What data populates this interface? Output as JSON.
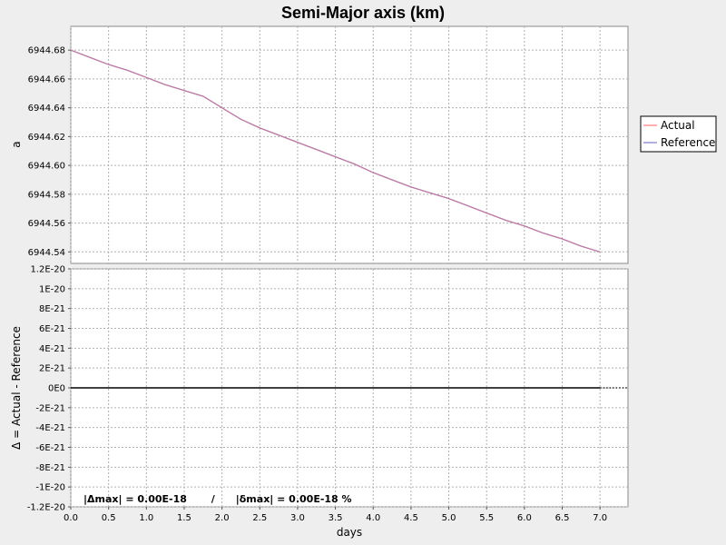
{
  "chart_data": {
    "type": "line",
    "title": "Semi-Major axis (km)",
    "xlabel": "days",
    "xlim": [
      0,
      7.37
    ],
    "xticks": [
      0.0,
      0.5,
      1.0,
      1.5,
      2.0,
      2.5,
      3.0,
      3.5,
      4.0,
      4.5,
      5.0,
      5.5,
      6.0,
      6.5,
      7.0
    ],
    "xtick_labels": [
      "0.0",
      "0.5",
      "1.0",
      "1.5",
      "2.0",
      "2.5",
      "3.0",
      "3.5",
      "4.0",
      "4.5",
      "5.0",
      "5.5",
      "6.0",
      "6.5",
      "7.0"
    ],
    "grid": true,
    "legend_placement": "right",
    "top_panel": {
      "ylabel": "a",
      "ylim": [
        6944.532,
        6944.6965
      ],
      "yticks": [
        6944.54,
        6944.56,
        6944.58,
        6944.6,
        6944.62,
        6944.64,
        6944.66,
        6944.68
      ],
      "ytick_labels": [
        "6944.54",
        "6944.56",
        "6944.58",
        "6944.60",
        "6944.62",
        "6944.64",
        "6944.66",
        "6944.68"
      ],
      "series": [
        {
          "name": "Actual",
          "color": "#ff7b7b",
          "x": [
            0.0,
            0.25,
            0.5,
            0.75,
            1.0,
            1.25,
            1.5,
            1.75,
            2.0,
            2.25,
            2.5,
            2.75,
            3.0,
            3.25,
            3.5,
            3.75,
            4.0,
            4.25,
            4.5,
            4.75,
            5.0,
            5.25,
            5.5,
            5.75,
            6.0,
            6.25,
            6.5,
            6.75,
            7.0
          ],
          "y": [
            6944.68,
            6944.675,
            6944.67,
            6944.666,
            6944.661,
            6944.656,
            6944.652,
            6944.648,
            6944.64,
            6944.632,
            6944.626,
            6944.621,
            6944.616,
            6944.611,
            6944.606,
            6944.601,
            6944.595,
            6944.59,
            6944.585,
            6944.581,
            6944.577,
            6944.572,
            6944.567,
            6944.562,
            6944.558,
            6944.553,
            6944.549,
            6944.544,
            6944.54
          ]
        },
        {
          "name": "Reference",
          "color": "#7b7bcc",
          "x": [
            0.0,
            0.25,
            0.5,
            0.75,
            1.0,
            1.25,
            1.5,
            1.75,
            2.0,
            2.25,
            2.5,
            2.75,
            3.0,
            3.25,
            3.5,
            3.75,
            4.0,
            4.25,
            4.5,
            4.75,
            5.0,
            5.25,
            5.5,
            5.75,
            6.0,
            6.25,
            6.5,
            6.75,
            7.0
          ],
          "y": [
            6944.68,
            6944.675,
            6944.67,
            6944.666,
            6944.661,
            6944.656,
            6944.652,
            6944.648,
            6944.64,
            6944.632,
            6944.626,
            6944.621,
            6944.616,
            6944.611,
            6944.606,
            6944.601,
            6944.595,
            6944.59,
            6944.585,
            6944.581,
            6944.577,
            6944.572,
            6944.567,
            6944.562,
            6944.558,
            6944.553,
            6944.549,
            6944.544,
            6944.54
          ]
        }
      ]
    },
    "bottom_panel": {
      "ylabel": "Δ = Actual - Reference",
      "ylim": [
        -1.2e-20,
        1.2e-20
      ],
      "yticks": [
        1.2e-20,
        1e-20,
        8e-21,
        6e-21,
        4e-21,
        2e-21,
        0,
        -2e-21,
        -4e-21,
        -6e-21,
        -8e-21,
        -1e-20,
        -1.2e-20
      ],
      "ytick_labels": [
        "1.2E-20",
        "1E-20",
        "8E-21",
        "6E-21",
        "4E-21",
        "2E-21",
        "0E0",
        "-2E-21",
        "-4E-21",
        "-6E-21",
        "-8E-21",
        "-1E-20",
        "-1.2E-20"
      ],
      "series": [
        {
          "color": "#000000",
          "x": [
            0.0,
            7.0
          ],
          "y": [
            0,
            0
          ]
        }
      ],
      "zero_line_dotted": true
    },
    "annotation": "|Δmax| = 0.00E-18       /      |δmax| = 0.00E-18 %"
  }
}
